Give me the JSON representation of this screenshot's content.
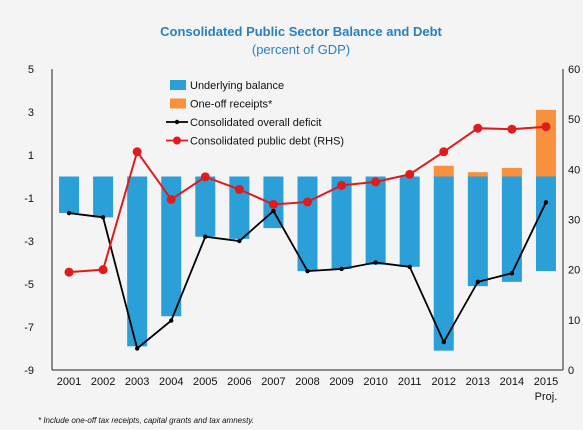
{
  "chart_data": {
    "type": "bar",
    "title": "Consolidated Public Sector Balance and Debt",
    "subtitle": "(percent of GDP)",
    "categories": [
      "2001",
      "2002",
      "2003",
      "2004",
      "2005",
      "2006",
      "2007",
      "2008",
      "2009",
      "2010",
      "2011",
      "2012",
      "2013",
      "2014",
      "2015"
    ],
    "category_sublabels": {
      "2015": "Proj."
    },
    "y_left": {
      "lim": [
        -9,
        5
      ],
      "ticks": [
        5,
        3,
        1,
        -1,
        -3,
        -5,
        -7,
        -9
      ]
    },
    "y_right": {
      "lim": [
        0,
        60
      ],
      "ticks": [
        60,
        50,
        40,
        30,
        20,
        10,
        0
      ],
      "tick_labels": [
        "60",
        "50",
        "40",
        "30",
        "20",
        "10",
        "0"
      ]
    },
    "series": [
      {
        "name": "Underlying balance",
        "kind": "bar",
        "axis": "left",
        "color": "#2b9fd8",
        "values": [
          -1.7,
          -1.9,
          -7.9,
          -6.5,
          -2.8,
          -2.9,
          -2.4,
          -4.4,
          -4.3,
          -4.1,
          -4.2,
          -8.1,
          -5.1,
          -4.9,
          -4.4
        ]
      },
      {
        "name": "One-off receipts*",
        "kind": "bar",
        "axis": "left",
        "color": "#f7913d",
        "values": [
          0,
          0,
          0,
          0,
          0,
          0,
          0,
          0,
          0,
          0,
          0,
          0.5,
          0.2,
          0.4,
          3.1
        ]
      },
      {
        "name": "Consolidated overall deficit",
        "kind": "line",
        "axis": "left",
        "color": "#000000",
        "values": [
          -1.7,
          -1.9,
          -8.0,
          -6.7,
          -2.8,
          -3.0,
          -1.6,
          -4.4,
          -4.3,
          -4.0,
          -4.2,
          -7.7,
          -4.9,
          -4.5,
          -1.2
        ]
      },
      {
        "name": "Consolidated public debt (RHS)",
        "kind": "line",
        "axis": "right",
        "color": "#e01b1b",
        "values": [
          19.5,
          20.0,
          43.5,
          34.0,
          38.5,
          36.0,
          33.0,
          33.5,
          36.8,
          37.5,
          39.0,
          43.5,
          48.2,
          48.0,
          48.5
        ]
      }
    ],
    "footnote": "* Include one-off tax receipts, capital grants and tax amnesty.",
    "legend_position": "top-left inside plot",
    "grid": false
  }
}
